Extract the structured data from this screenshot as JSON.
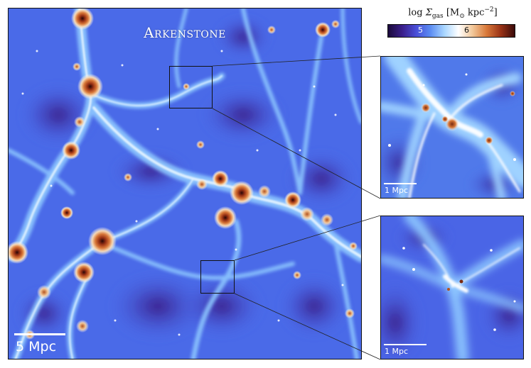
{
  "figure": {
    "simulation_name": "Arkenstone",
    "main_scalebar_label": "5 Mpc",
    "inset_top_scalebar_label": "1 Mpc",
    "inset_bottom_scalebar_label": "1 Mpc"
  },
  "colorbar": {
    "label_log": "log",
    "label_symbol": "Σ",
    "label_subscript": "gas",
    "label_units": "[M",
    "label_units_sub": "⊙",
    "label_units_rest": " kpc",
    "label_units_exp": "−2",
    "label_units_close": "]",
    "tick_5": "5",
    "tick_6": "6",
    "colors": [
      "#1a0a3a",
      "#3a1e8a",
      "#4a4fd8",
      "#5b8cf2",
      "#a9d6ff",
      "#ffffff",
      "#f2c89a",
      "#d9793a",
      "#9a3316",
      "#3a0a0a"
    ]
  }
}
